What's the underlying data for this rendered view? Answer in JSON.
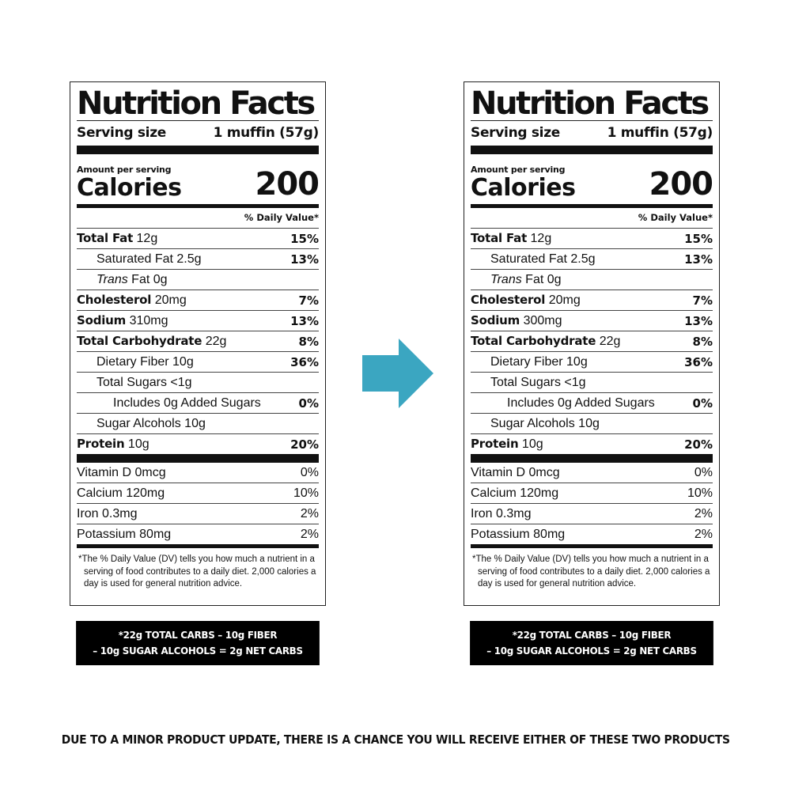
{
  "labels": [
    {
      "title": "Nutrition Facts",
      "serving_label": "Serving size",
      "serving_value": "1 muffin (57g)",
      "amount_per_serving": "Amount per serving",
      "calories_label": "Calories",
      "calories_value": "200",
      "dv_header": "% Daily Value*",
      "rows": [
        {
          "name": "Total Fat",
          "amount": "12g",
          "dv": "15%"
        },
        {
          "name": "Saturated Fat 2.5g",
          "dv": "13%"
        },
        {
          "name_italic": "Trans",
          "name_rest": "Fat 0g"
        },
        {
          "name": "Cholesterol",
          "amount": "20mg",
          "dv": "7%"
        },
        {
          "name": "Sodium",
          "amount": "310mg",
          "dv": "13%"
        },
        {
          "name": "Total Carbohydrate",
          "amount": "22g",
          "dv": "8%"
        },
        {
          "name": "Dietary Fiber 10g",
          "dv": "36%"
        },
        {
          "name": "Total Sugars <1g"
        },
        {
          "name": "Includes 0g Added Sugars",
          "dv": "0%"
        },
        {
          "name": "Sugar Alcohols 10g"
        },
        {
          "name": "Protein",
          "amount": "10g",
          "dv": "20%"
        }
      ],
      "vitamins": [
        {
          "name": "Vitamin D 0mcg",
          "dv": "0%"
        },
        {
          "name": "Calcium 120mg",
          "dv": "10%"
        },
        {
          "name": "Iron 0.3mg",
          "dv": "2%"
        },
        {
          "name": "Potassium 80mg",
          "dv": "2%"
        }
      ],
      "footnote": "*The % Daily Value (DV) tells you how much a nutrient in a serving of food contributes to a daily diet. 2,000 calories a day is used for general nutrition advice.",
      "callout_line1": "*22g TOTAL CARBS – 10g FIBER",
      "callout_line2": "– 10g SUGAR ALCOHOLS = 2g NET CARBS"
    },
    {
      "title": "Nutrition Facts",
      "serving_label": "Serving size",
      "serving_value": "1 muffin (57g)",
      "amount_per_serving": "Amount per serving",
      "calories_label": "Calories",
      "calories_value": "200",
      "dv_header": "% Daily Value*",
      "rows": [
        {
          "name": "Total Fat",
          "amount": "12g",
          "dv": "15%"
        },
        {
          "name": "Saturated Fat 2.5g",
          "dv": "13%"
        },
        {
          "name_italic": "Trans",
          "name_rest": "Fat 0g"
        },
        {
          "name": "Cholesterol",
          "amount": "20mg",
          "dv": "7%"
        },
        {
          "name": "Sodium",
          "amount": "300mg",
          "dv": "13%"
        },
        {
          "name": "Total Carbohydrate",
          "amount": "22g",
          "dv": "8%"
        },
        {
          "name": "Dietary Fiber 10g",
          "dv": "36%"
        },
        {
          "name": "Total Sugars <1g"
        },
        {
          "name": "Includes 0g Added Sugars",
          "dv": "0%"
        },
        {
          "name": "Sugar Alcohols 10g"
        },
        {
          "name": "Protein",
          "amount": "10g",
          "dv": "20%"
        }
      ],
      "vitamins": [
        {
          "name": "Vitamin D 0mcg",
          "dv": "0%"
        },
        {
          "name": "Calcium 120mg",
          "dv": "10%"
        },
        {
          "name": "Iron 0.3mg",
          "dv": "2%"
        },
        {
          "name": "Potassium 80mg",
          "dv": "2%"
        }
      ],
      "footnote": "*The % Daily Value (DV) tells you how much a nutrient in a serving of food contributes to a daily diet. 2,000 calories a day is used for general nutrition advice.",
      "callout_line1": "*22g TOTAL CARBS – 10g FIBER",
      "callout_line2": "– 10g SUGAR ALCOHOLS = 2g NET CARBS"
    }
  ],
  "arrow": {
    "icon": "right-arrow-icon",
    "color": "#3ba6c1"
  },
  "notice": "DUE TO A MINOR PRODUCT UPDATE, THERE IS A CHANCE YOU WILL RECEIVE EITHER OF THESE TWO PRODUCTS"
}
